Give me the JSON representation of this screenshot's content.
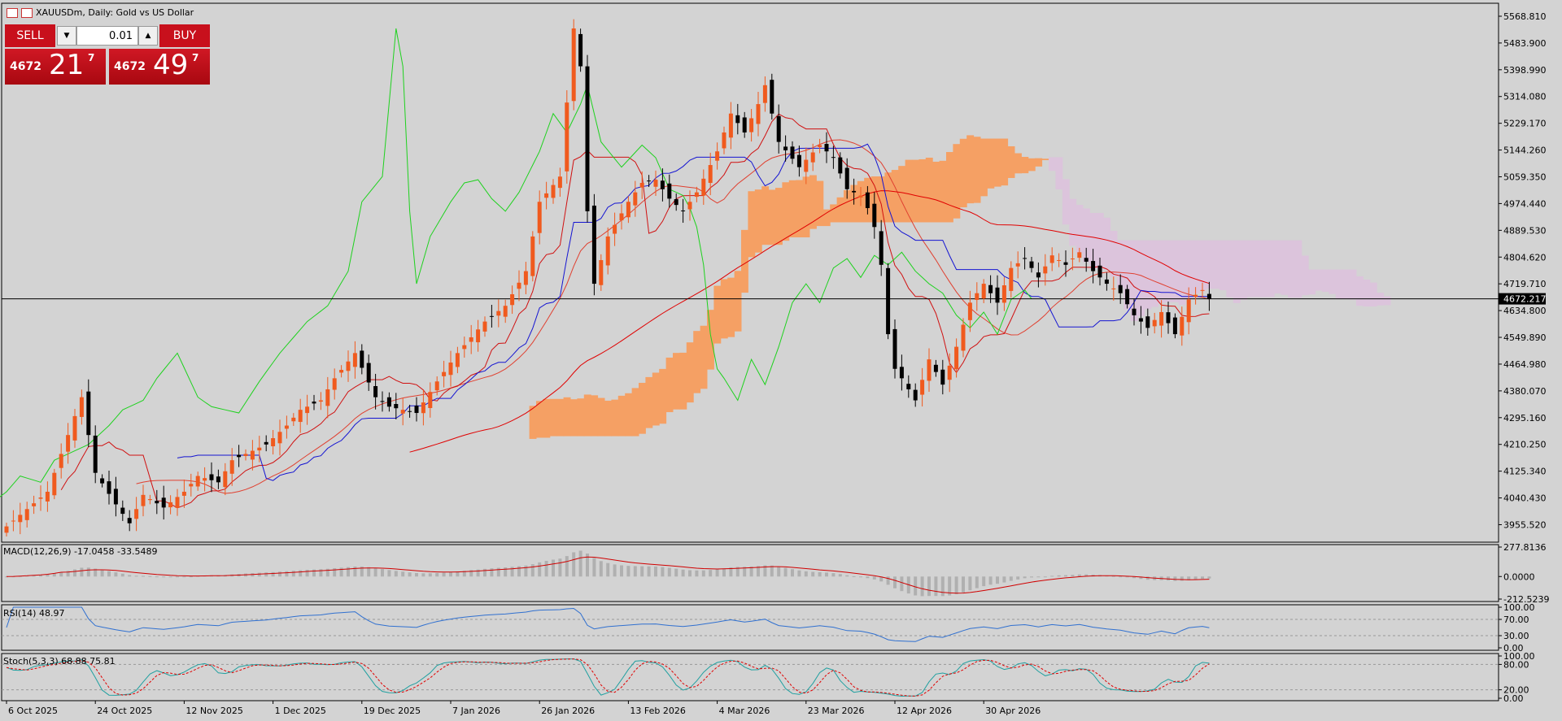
{
  "title": "XAUUSDm, Daily:  Gold vs US Dollar",
  "trade_panel": {
    "sell_label": "SELL",
    "buy_label": "BUY",
    "lot": "0.01",
    "sell_price_prefix": "4672",
    "sell_price_main": "21",
    "sell_price_sup": "7",
    "buy_price_prefix": "4672",
    "buy_price_main": "49",
    "buy_price_sup": "7"
  },
  "colors": {
    "background": "#d3d3d3",
    "bull_candle": "#f05a1e",
    "bear_candle": "#000000",
    "kumo_bull": "#f5a064",
    "kumo_bear": "#dcc4dc",
    "tenkan": "#d01010",
    "kijun": "#1414d2",
    "chikou": "#1ed21e",
    "ma_fast": "#e04030",
    "ma_slow": "#e00000",
    "macd_signal": "#d00000",
    "rsi": "#3070d0",
    "stoch_main": "#20a0a0",
    "stoch_signal": "#e00000"
  },
  "chart_data": [
    {
      "type": "candlestick",
      "title": "XAUUSDm, Daily:  Gold vs US Dollar",
      "current_price": "4672.217",
      "ylim": [
        3900,
        5610
      ],
      "y_ticks": [
        "5568.810",
        "5483.900",
        "5398.990",
        "5314.080",
        "5229.170",
        "5144.260",
        "5059.350",
        "4974.440",
        "4889.530",
        "4804.620",
        "4719.710",
        "4634.800",
        "4549.890",
        "4464.980",
        "4380.070",
        "4295.160",
        "4210.250",
        "4125.340",
        "4040.430",
        "3955.520"
      ],
      "x_labels": [
        "6 Oct 2025",
        "24 Oct 2025",
        "12 Nov 2025",
        "1 Dec 2025",
        "19 Dec 2025",
        "7 Jan 2026",
        "26 Jan 2026",
        "13 Feb 2026",
        "4 Mar 2026",
        "23 Mar 2026",
        "12 Apr 2026",
        "30 Apr 2026"
      ],
      "close_anchors": [
        [
          0,
          3950
        ],
        [
          6,
          4060
        ],
        [
          8,
          4180
        ],
        [
          11,
          4360
        ],
        [
          13,
          4120
        ],
        [
          16,
          4020
        ],
        [
          18,
          3960
        ],
        [
          20,
          4050
        ],
        [
          23,
          4010
        ],
        [
          26,
          4060
        ],
        [
          28,
          4110
        ],
        [
          31,
          4090
        ],
        [
          33,
          4160
        ],
        [
          36,
          4190
        ],
        [
          38,
          4210
        ],
        [
          41,
          4270
        ],
        [
          43,
          4320
        ],
        [
          46,
          4350
        ],
        [
          48,
          4420
        ],
        [
          51,
          4500
        ],
        [
          54,
          4360
        ],
        [
          56,
          4330
        ],
        [
          60,
          4310
        ],
        [
          63,
          4410
        ],
        [
          66,
          4500
        ],
        [
          70,
          4600
        ],
        [
          73,
          4650
        ],
        [
          76,
          4760
        ],
        [
          78,
          4980
        ],
        [
          81,
          5060
        ],
        [
          83,
          5530
        ],
        [
          84,
          5410
        ],
        [
          85,
          4950
        ],
        [
          86,
          4720
        ],
        [
          88,
          4870
        ],
        [
          91,
          4980
        ],
        [
          93,
          5040
        ],
        [
          95,
          5050
        ],
        [
          97,
          4990
        ],
        [
          99,
          4950
        ],
        [
          101,
          5010
        ],
        [
          104,
          5140
        ],
        [
          106,
          5260
        ],
        [
          108,
          5200
        ],
        [
          110,
          5290
        ],
        [
          111,
          5350
        ],
        [
          113,
          5170
        ],
        [
          116,
          5090
        ],
        [
          119,
          5160
        ],
        [
          121,
          5120
        ],
        [
          123,
          5020
        ],
        [
          125,
          5000
        ],
        [
          126,
          4960
        ],
        [
          127,
          4900
        ],
        [
          128,
          4780
        ],
        [
          129,
          4560
        ],
        [
          130,
          4450
        ],
        [
          131,
          4420
        ],
        [
          133,
          4350
        ],
        [
          135,
          4480
        ],
        [
          137,
          4400
        ],
        [
          139,
          4520
        ],
        [
          141,
          4660
        ],
        [
          143,
          4720
        ],
        [
          145,
          4660
        ],
        [
          147,
          4770
        ],
        [
          149,
          4800
        ],
        [
          151,
          4740
        ],
        [
          153,
          4810
        ],
        [
          155,
          4780
        ],
        [
          157,
          4820
        ],
        [
          159,
          4760
        ],
        [
          161,
          4720
        ],
        [
          163,
          4690
        ],
        [
          165,
          4620
        ],
        [
          167,
          4580
        ],
        [
          169,
          4630
        ],
        [
          171,
          4560
        ],
        [
          173,
          4670
        ],
        [
          175,
          4700
        ],
        [
          176,
          4672
        ]
      ]
    },
    {
      "type": "line",
      "title": "MACD(12,26,9) -17.0458 -33.5489",
      "y_ticks": [
        "277.8136",
        "0.0000",
        "-212.5239"
      ],
      "ylim": [
        -212.5239,
        277.8136
      ]
    },
    {
      "type": "line",
      "title": "RSI(14) 48.97",
      "y_ticks": [
        "100.00",
        "70.00",
        "30.00",
        "0.00"
      ],
      "ylim": [
        0,
        100
      ],
      "levels": [
        30,
        70
      ]
    },
    {
      "type": "line",
      "title": "Stoch(5,3,3) 68.88 75.81",
      "y_ticks": [
        "100.00",
        "80.00",
        "20.00",
        "0.00"
      ],
      "ylim": [
        0,
        100
      ],
      "levels": [
        20,
        80
      ]
    }
  ]
}
